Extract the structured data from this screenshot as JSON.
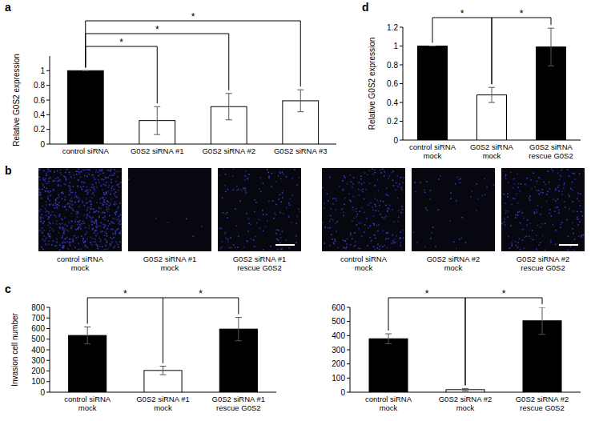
{
  "chart_data": [
    {
      "type": "bar",
      "title": "a",
      "y_label": "Relative G0S2 expression",
      "categories": [
        "control siRNA",
        "G0S2 siRNA #1",
        "G0S2 siRNA #2",
        "G0S2 siRNA #3"
      ],
      "values": [
        1,
        0.32,
        0.51,
        0.59
      ],
      "errors": [
        0,
        0.19,
        0.18,
        0.15
      ],
      "colors": [
        "#000000",
        "#ffffff",
        "#ffffff",
        "#ffffff"
      ],
      "ylim": [
        0,
        1.2
      ],
      "yticks": [
        0,
        0.2,
        0.4,
        0.6,
        0.8,
        1
      ],
      "grid": false,
      "annotations": [
        {
          "text": "*",
          "between": [
            0,
            1
          ]
        },
        {
          "text": "*",
          "between": [
            0,
            2
          ]
        },
        {
          "text": "*",
          "between": [
            0,
            3
          ]
        }
      ]
    },
    {
      "type": "bar",
      "title": "c",
      "y_label": "Invasion cell number",
      "categories": [
        "control siRNA\nmock",
        "G0S2 siRNA #1\nmock",
        "G0S2 siRNA #1\nrescue G0S2"
      ],
      "values": [
        535,
        205,
        595
      ],
      "errors": [
        80,
        40,
        110
      ],
      "colors": [
        "#000000",
        "#ffffff",
        "#000000"
      ],
      "ylim": [
        0,
        800
      ],
      "yticks": [
        0,
        100,
        200,
        300,
        400,
        500,
        600,
        700,
        800
      ],
      "grid": false,
      "annotations": [
        {
          "text": "*",
          "between": [
            0,
            1
          ]
        },
        {
          "text": "*",
          "between": [
            1,
            2
          ]
        }
      ]
    },
    {
      "type": "bar",
      "categories": [
        "control siRNA\nmock",
        "G0S2 siRNA #2\nmock",
        "G0S2 siRNA #2\nrescue G0S2"
      ],
      "values": [
        378,
        18,
        505
      ],
      "errors": [
        35,
        8,
        95
      ],
      "colors": [
        "#000000",
        "#ffffff",
        "#000000"
      ],
      "ylim": [
        0,
        600
      ],
      "yticks": [
        0,
        100,
        200,
        300,
        400,
        500,
        600
      ],
      "grid": false,
      "annotations": [
        {
          "text": "*",
          "between": [
            0,
            1
          ]
        },
        {
          "text": "*",
          "between": [
            1,
            2
          ]
        }
      ]
    },
    {
      "type": "bar",
      "title": "d",
      "y_label": "Relative G0S2 expression",
      "categories": [
        "control siRNA\nmock",
        "G0S2 siRNA\nmock",
        "G0S2 siRNA\nrescue G0S2"
      ],
      "values": [
        1,
        0.48,
        0.99
      ],
      "errors": [
        0,
        0.08,
        0.2
      ],
      "colors": [
        "#000000",
        "#ffffff",
        "#000000"
      ],
      "ylim": [
        0,
        1.2
      ],
      "yticks": [
        0,
        0.2,
        0.4,
        0.6,
        0.8,
        1,
        1.2
      ],
      "grid": false,
      "annotations": [
        {
          "text": "*",
          "between": [
            0,
            1
          ]
        },
        {
          "text": "*",
          "between": [
            1,
            2
          ]
        }
      ]
    }
  ],
  "micrographs": {
    "title": "b",
    "captions": [
      "control siRNA\nmock",
      "G0S2 siRNA #1\nmock",
      "G0S2 siRNA #1\nrescue G0S2",
      "control siRNA\nmock",
      "G0S2 siRNA #2\nmock",
      "G0S2 siRNA #2\nrescue G0S2"
    ]
  }
}
